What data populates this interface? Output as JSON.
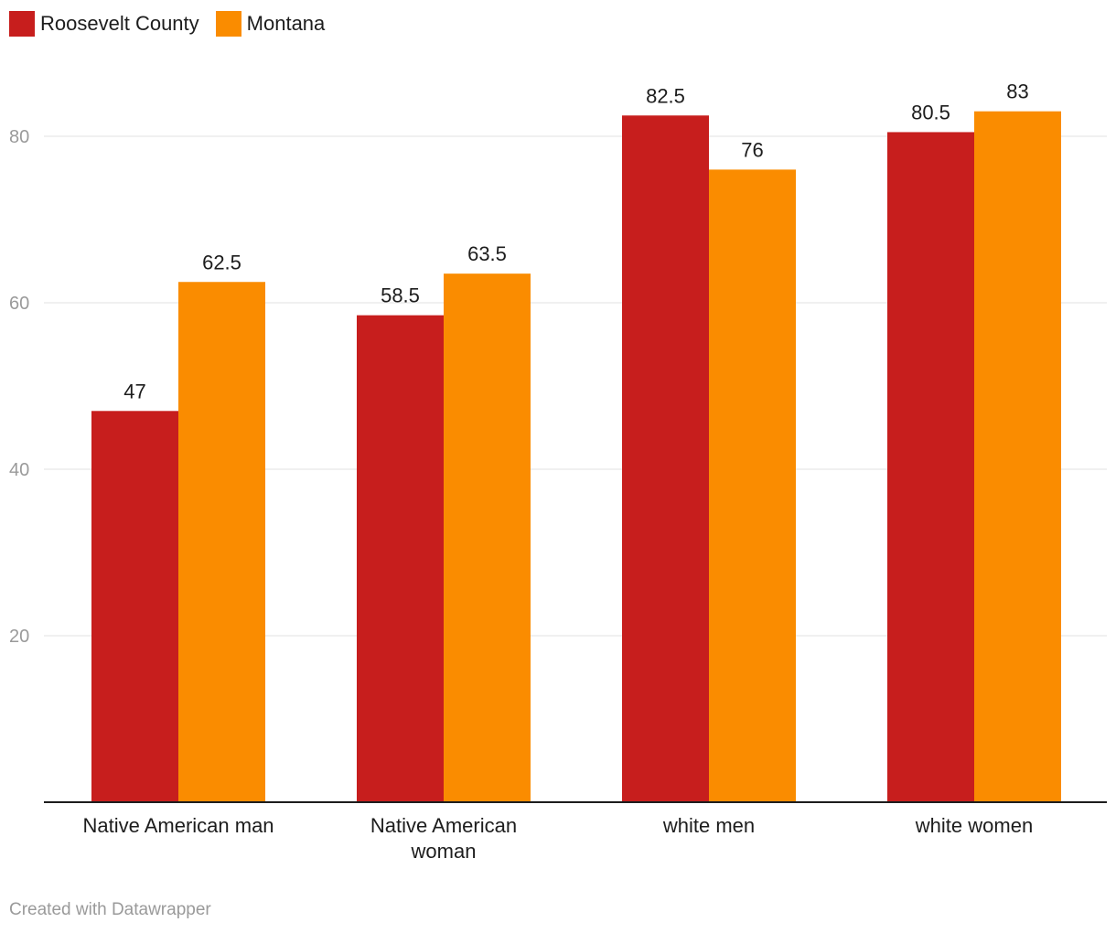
{
  "chart_data": {
    "type": "bar",
    "title": "",
    "xlabel": "",
    "ylabel": "",
    "ylim": [
      0,
      90
    ],
    "yticks": [
      20,
      40,
      60,
      80
    ],
    "grid": true,
    "legend_position": "top-left",
    "categories": [
      [
        "Native American man"
      ],
      [
        "Native American",
        "woman"
      ],
      [
        "white men"
      ],
      [
        "white women"
      ]
    ],
    "series": [
      {
        "name": "Roosevelt County",
        "color": "#c71e1d",
        "values": [
          47,
          58.5,
          82.5,
          80.5
        ],
        "labels": [
          "47",
          "58.5",
          "82.5",
          "80.5"
        ]
      },
      {
        "name": "Montana",
        "color": "#fa8c00",
        "values": [
          62.5,
          63.5,
          76,
          83
        ],
        "labels": [
          "62.5",
          "63.5",
          "76",
          "83"
        ]
      }
    ]
  },
  "legend": {
    "items": [
      {
        "label": "Roosevelt County",
        "color": "#c71e1d"
      },
      {
        "label": "Montana",
        "color": "#fa8c00"
      }
    ]
  },
  "footer": {
    "text": "Created with Datawrapper"
  }
}
